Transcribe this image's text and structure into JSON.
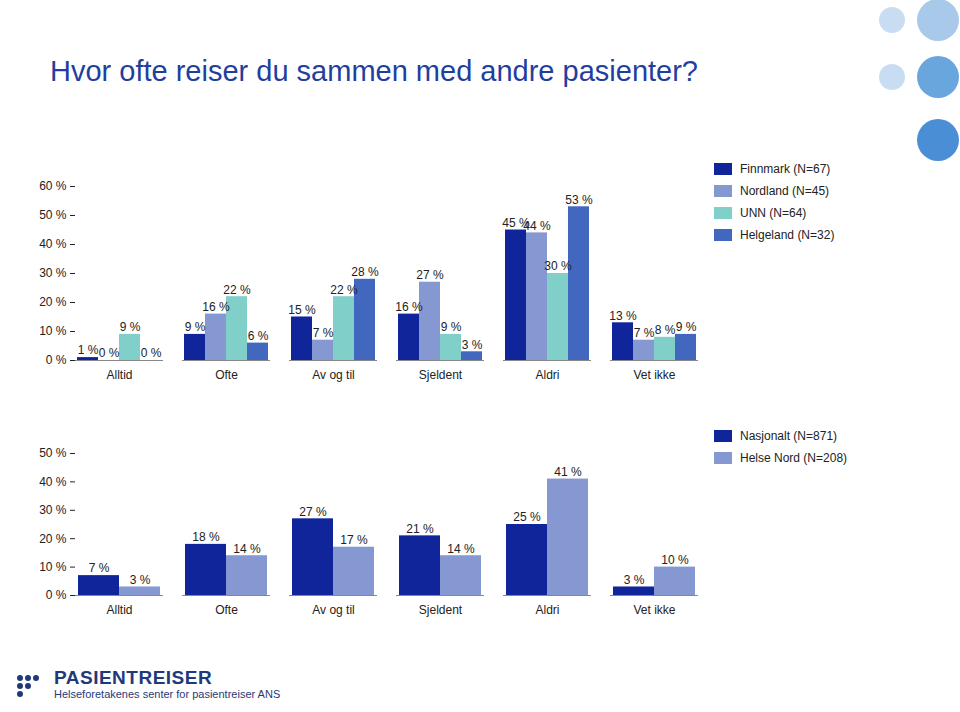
{
  "title": "Hvor ofte reiser du sammen med andre pasienter?",
  "logo": {
    "name": "PASIENTREISER",
    "subtitle": "Helseforetakenes senter for pasientreiser ANS"
  },
  "chart_data": [
    {
      "type": "bar",
      "categories": [
        "Alltid",
        "Ofte",
        "Av og til",
        "Sjeldent",
        "Aldri",
        "Vet ikke"
      ],
      "series": [
        {
          "name": "Finnmark (N=67)",
          "color": "#10259a",
          "values": [
            1,
            9,
            15,
            16,
            45,
            13
          ],
          "value_labels": [
            "1 %",
            "9 %",
            "15 %",
            "16 %",
            "45 %",
            "13 %"
          ]
        },
        {
          "name": "Nordland (N=45)",
          "color": "#8598d2",
          "values": [
            0,
            16,
            7,
            27,
            44,
            7
          ],
          "value_labels": [
            "0 %",
            "16 %",
            "7 %",
            "27 %",
            "44 %",
            "7 %"
          ]
        },
        {
          "name": "UNN (N=64)",
          "color": "#80cfc9",
          "values": [
            9,
            22,
            22,
            9,
            30,
            8
          ],
          "value_labels": [
            "9 %",
            "22 %",
            "22 %",
            "9 %",
            "30 %",
            "8 %"
          ]
        },
        {
          "name": "Helgeland (N=32)",
          "color": "#4267bf",
          "values": [
            0,
            6,
            28,
            3,
            53,
            9
          ],
          "value_labels": [
            "0 %",
            "6 %",
            "28 %",
            "3 %",
            "53 %",
            "9 %"
          ]
        }
      ],
      "ylim": [
        0,
        60
      ],
      "yticks": [
        {
          "value": 0,
          "label": "0 %"
        },
        {
          "value": 10,
          "label": "10 %"
        },
        {
          "value": 20,
          "label": "20 %"
        },
        {
          "value": 30,
          "label": "30 %"
        },
        {
          "value": 40,
          "label": "40 %"
        },
        {
          "value": 50,
          "label": "50 %"
        },
        {
          "value": 60,
          "label": "60 %"
        }
      ],
      "grid": false,
      "data_labels": true,
      "legend": "right"
    },
    {
      "type": "bar",
      "categories": [
        "Alltid",
        "Ofte",
        "Av og til",
        "Sjeldent",
        "Aldri",
        "Vet ikke"
      ],
      "series": [
        {
          "name": "Nasjonalt (N=871)",
          "color": "#10259a",
          "values": [
            7,
            18,
            27,
            21,
            25,
            3
          ],
          "value_labels": [
            "7 %",
            "18 %",
            "27 %",
            "21 %",
            "25 %",
            "3 %"
          ]
        },
        {
          "name": "Helse Nord (N=208)",
          "color": "#8598d2",
          "values": [
            3,
            14,
            17,
            14,
            41,
            10
          ],
          "value_labels": [
            "3 %",
            "14 %",
            "17 %",
            "14 %",
            "41 %",
            "10 %"
          ]
        }
      ],
      "ylim": [
        0,
        50
      ],
      "yticks": [
        {
          "value": 0,
          "label": "0 %"
        },
        {
          "value": 10,
          "label": "10 %"
        },
        {
          "value": 20,
          "label": "20 %"
        },
        {
          "value": 30,
          "label": "30 %"
        },
        {
          "value": 40,
          "label": "40 %"
        },
        {
          "value": 50,
          "label": "50 %"
        }
      ],
      "grid": false,
      "data_labels": true,
      "legend": "right"
    }
  ]
}
